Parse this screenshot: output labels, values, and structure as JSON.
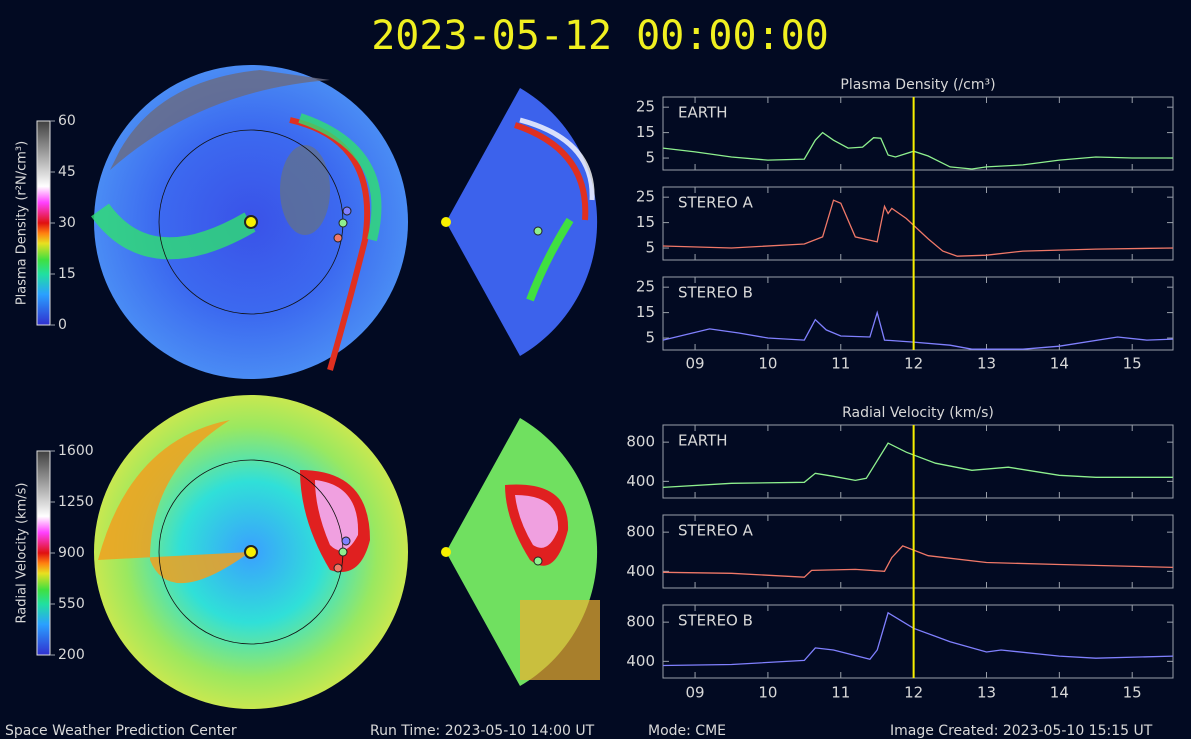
{
  "title": "2023-05-12 00:00:00",
  "footer": {
    "left": "Space Weather Prediction Center",
    "run_time": "Run Time: 2023-05-10 14:00 UT",
    "mode": "Mode: CME",
    "created": "Image Created: 2023-05-10 15:15 UT"
  },
  "colorbars": [
    {
      "label": "Plasma Density (r²N/cm³)",
      "lim": [
        0,
        60
      ],
      "ticks": [
        0,
        15,
        30,
        45,
        60
      ]
    },
    {
      "label": "Radial Velocity (km/s)",
      "lim": [
        200,
        1600
      ],
      "ticks": [
        200,
        550,
        900,
        1250,
        1600
      ]
    }
  ],
  "chart_data": [
    {
      "type": "line",
      "title": "Plasma Density (/cm³)",
      "xlim": [
        8.56,
        15.56
      ],
      "xticks": [
        {
          "value": 9,
          "label": "09"
        },
        10,
        11,
        12,
        13,
        14,
        15
      ],
      "ylim": [
        0.3,
        29
      ],
      "yticks": [
        5,
        15,
        25
      ],
      "time_marker": 12,
      "series": [
        {
          "name": "EARTH",
          "color": "#8ef08e",
          "x": [
            8.56,
            9.0,
            9.5,
            10.0,
            10.5,
            10.65,
            10.75,
            10.9,
            11.1,
            11.3,
            11.45,
            11.55,
            11.65,
            11.75,
            12.0,
            12.2,
            12.5,
            12.8,
            13.0,
            13.5,
            14.0,
            14.5,
            15.0,
            15.56
          ],
          "values": [
            8.9,
            7.4,
            5.4,
            4.2,
            4.6,
            12,
            15,
            12,
            8.9,
            9.3,
            13,
            12.8,
            6.2,
            5.4,
            7.7,
            5.8,
            1.5,
            0.7,
            1.5,
            2.3,
            4.2,
            5.4,
            5,
            5
          ]
        },
        {
          "name": "STEREO A",
          "color": "#f07868",
          "x": [
            8.56,
            9.5,
            10.5,
            10.75,
            10.9,
            11.0,
            11.2,
            11.5,
            11.6,
            11.65,
            11.7,
            11.9,
            12.2,
            12.4,
            12.6,
            13.0,
            13.5,
            14.5,
            15.56
          ],
          "values": [
            5.8,
            5,
            6.6,
            9.4,
            23.8,
            22.6,
            9.4,
            7.4,
            21.4,
            18.6,
            20.6,
            16.6,
            8.6,
            3.8,
            1.8,
            2.2,
            3.8,
            4.6,
            5
          ]
        },
        {
          "name": "STEREO B",
          "color": "#8080ff",
          "x": [
            8.56,
            9.2,
            9.6,
            10.0,
            10.5,
            10.65,
            10.8,
            11.0,
            11.4,
            11.5,
            11.6,
            12.0,
            12.5,
            12.8,
            13.5,
            14.0,
            14.8,
            15.2,
            15.56
          ],
          "values": [
            4.2,
            8.6,
            7,
            5,
            4.2,
            12.2,
            8.2,
            5.8,
            5.4,
            15,
            4.2,
            3.4,
            2.2,
            0.6,
            0.6,
            1.8,
            5.4,
            4.2,
            4.6
          ]
        }
      ]
    },
    {
      "type": "line",
      "title": "Radial Velocity (km/s)",
      "xlim": [
        8.56,
        15.56
      ],
      "xticks": [
        {
          "value": 9,
          "label": "09"
        },
        10,
        11,
        12,
        13,
        14,
        15
      ],
      "ylim": [
        230,
        975
      ],
      "yticks": [
        400,
        800
      ],
      "time_marker": 12,
      "series": [
        {
          "name": "EARTH",
          "color": "#8ef08e",
          "x": [
            8.56,
            9.5,
            10.5,
            10.65,
            10.9,
            11.2,
            11.35,
            11.65,
            11.9,
            12.3,
            12.8,
            13.3,
            14.0,
            14.5,
            15.56
          ],
          "values": [
            338,
            380,
            390,
            482,
            451,
            410,
            431,
            790,
            697,
            585,
            513,
            544,
            462,
            441,
            441
          ]
        },
        {
          "name": "STEREO A",
          "color": "#f07868",
          "x": [
            8.56,
            9.5,
            10.5,
            10.6,
            11.2,
            11.6,
            11.7,
            11.85,
            12.2,
            13.0,
            14.0,
            15.56
          ],
          "values": [
            390,
            380,
            340,
            410,
            420,
            400,
            540,
            660,
            560,
            490,
            470,
            440
          ]
        },
        {
          "name": "STEREO B",
          "color": "#8080ff",
          "x": [
            8.56,
            9.5,
            10.5,
            10.65,
            10.9,
            11.4,
            11.5,
            11.65,
            12.0,
            12.5,
            13.0,
            13.2,
            14.0,
            14.5,
            15.56
          ],
          "values": [
            358,
            368,
            410,
            537,
            516,
            421,
            516,
            895,
            737,
            600,
            495,
            516,
            453,
            432,
            453
          ]
        }
      ]
    }
  ]
}
